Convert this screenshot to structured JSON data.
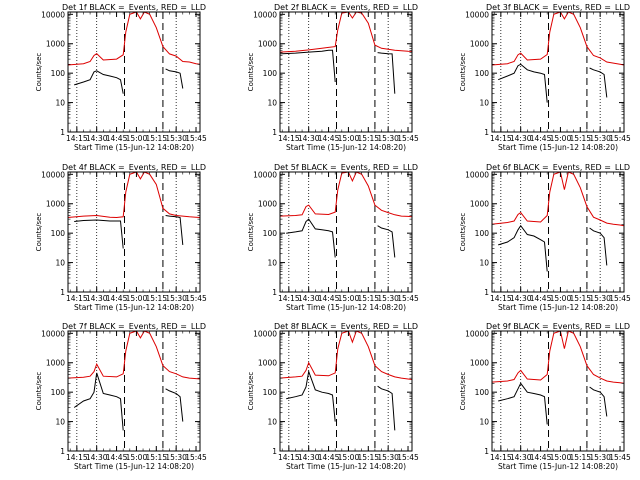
{
  "colors": {
    "events": "#000000",
    "lld": "#dd0000",
    "axes": "#000000"
  },
  "common": {
    "title_suffix": "BLACK =_Events, RED =_LLD",
    "ylabel": "Counts/sec",
    "xlabel": "Start Time (15-Jun-12 14:08:20)",
    "x_ticks": [
      "14:15",
      "14:30",
      "14:45",
      "15:00",
      "15:15",
      "15:30",
      "15:45"
    ],
    "y_ticks": [
      "1",
      "10",
      "100",
      "1000",
      "10000"
    ]
  },
  "chart_data": [
    {
      "type": "line",
      "title": "Det 1f BLACK =_Events, RED =_LLD",
      "xlabel": "Start Time (15-Jun-12 14:08:20)",
      "ylabel": "Counts/sec",
      "xlim": [
        "14:08:20",
        "15:48"
      ],
      "ylim": [
        1,
        12000
      ],
      "yscale": "log",
      "dotted_times": [
        "14:15",
        "14:30",
        "15:30"
      ],
      "dashed_times": [
        "14:51",
        "15:20"
      ],
      "series": [
        {
          "name": "Events",
          "x": [
            "14:13",
            "14:20",
            "14:25",
            "14:28",
            "14:30",
            "14:35",
            "14:40",
            "14:45",
            "14:48",
            "14:50",
            "15:20",
            "15:22",
            "15:25",
            "15:30",
            "15:33",
            "15:35"
          ],
          "y": [
            40,
            50,
            60,
            110,
            120,
            90,
            80,
            70,
            60,
            20,
            null,
            140,
            120,
            110,
            100,
            30
          ]
        },
        {
          "name": "LLD",
          "x": [
            "14:08",
            "14:20",
            "14:25",
            "14:28",
            "14:30",
            "14:35",
            "14:45",
            "14:50",
            "14:52",
            "14:55",
            "15:00",
            "15:03",
            "15:06",
            "15:10",
            "15:15",
            "15:20",
            "15:25",
            "15:30",
            "15:35",
            "15:40",
            "15:45",
            "15:48"
          ],
          "y": [
            190,
            210,
            250,
            400,
            460,
            280,
            300,
            420,
            2500,
            10000,
            12000,
            7000,
            12000,
            10000,
            3500,
            800,
            450,
            380,
            250,
            240,
            210,
            200
          ]
        }
      ]
    },
    {
      "type": "line",
      "title": "Det 2f BLACK =_Events, RED =_LLD",
      "xlabel": "Start Time (15-Jun-12 14:08:20)",
      "ylabel": "Counts/sec",
      "xlim": [
        "14:08:20",
        "15:48"
      ],
      "ylim": [
        1,
        12000
      ],
      "yscale": "log",
      "dotted_times": [
        "14:15",
        "14:30",
        "15:30"
      ],
      "dashed_times": [
        "14:51",
        "15:20"
      ],
      "series": [
        {
          "name": "Events",
          "x": [
            "14:08",
            "14:20",
            "14:30",
            "14:40",
            "14:45",
            "14:48",
            "14:50",
            "15:20",
            "15:22",
            "15:25",
            "15:30",
            "15:33",
            "15:35"
          ],
          "y": [
            450,
            480,
            520,
            560,
            600,
            600,
            50,
            null,
            500,
            480,
            460,
            450,
            20
          ]
        },
        {
          "name": "LLD",
          "x": [
            "14:08",
            "14:20",
            "14:30",
            "14:40",
            "14:45",
            "14:50",
            "14:52",
            "14:55",
            "15:00",
            "15:03",
            "15:06",
            "15:10",
            "15:15",
            "15:20",
            "15:25",
            "15:30",
            "15:35",
            "15:40",
            "15:45",
            "15:48"
          ],
          "y": [
            520,
            560,
            620,
            700,
            750,
            800,
            3000,
            11000,
            12000,
            7500,
            12000,
            11000,
            5000,
            900,
            700,
            650,
            600,
            580,
            560,
            550
          ]
        }
      ]
    },
    {
      "type": "line",
      "title": "Det 3f BLACK =_Events, RED =_LLD",
      "xlabel": "Start Time (15-Jun-12 14:08:20)",
      "ylabel": "Counts/sec",
      "xlim": [
        "14:08:20",
        "15:48"
      ],
      "ylim": [
        1,
        12000
      ],
      "yscale": "log",
      "dotted_times": [
        "14:15",
        "14:30",
        "15:30"
      ],
      "dashed_times": [
        "14:51",
        "15:20"
      ],
      "series": [
        {
          "name": "Events",
          "x": [
            "14:13",
            "14:20",
            "14:25",
            "14:28",
            "14:30",
            "14:35",
            "14:40",
            "14:45",
            "14:48",
            "14:50",
            "15:20",
            "15:22",
            "15:25",
            "15:30",
            "15:33",
            "15:35"
          ],
          "y": [
            60,
            80,
            100,
            180,
            200,
            130,
            110,
            100,
            90,
            10,
            null,
            150,
            130,
            110,
            90,
            15
          ]
        },
        {
          "name": "LLD",
          "x": [
            "14:08",
            "14:20",
            "14:25",
            "14:28",
            "14:30",
            "14:35",
            "14:45",
            "14:50",
            "14:52",
            "14:55",
            "15:00",
            "15:03",
            "15:06",
            "15:10",
            "15:15",
            "15:20",
            "15:25",
            "15:30",
            "15:35",
            "15:40",
            "15:45",
            "15:48"
          ],
          "y": [
            190,
            210,
            250,
            420,
            480,
            280,
            300,
            430,
            2500,
            10000,
            12000,
            7000,
            12000,
            10000,
            3500,
            800,
            400,
            330,
            240,
            220,
            200,
            190
          ]
        }
      ]
    },
    {
      "type": "line",
      "title": "Det 4f BLACK =_Events, RED =_LLD",
      "xlabel": "Start Time (15-Jun-12 14:08:20)",
      "ylabel": "Counts/sec",
      "xlim": [
        "14:08:20",
        "15:48"
      ],
      "ylim": [
        1,
        12000
      ],
      "yscale": "log",
      "dotted_times": [
        "14:15",
        "14:30",
        "15:30"
      ],
      "dashed_times": [
        "14:51",
        "15:20"
      ],
      "series": [
        {
          "name": "Events",
          "x": [
            "14:13",
            "14:20",
            "14:30",
            "14:40",
            "14:45",
            "14:48",
            "14:50",
            "15:20",
            "15:22",
            "15:25",
            "15:30",
            "15:33",
            "15:35"
          ],
          "y": [
            250,
            270,
            280,
            260,
            260,
            260,
            30,
            null,
            400,
            380,
            360,
            340,
            40
          ]
        },
        {
          "name": "LLD",
          "x": [
            "14:08",
            "14:20",
            "14:30",
            "14:40",
            "14:45",
            "14:50",
            "14:52",
            "14:55",
            "15:00",
            "15:03",
            "15:06",
            "15:10",
            "15:15",
            "15:20",
            "15:25",
            "15:30",
            "15:35",
            "15:40",
            "15:45",
            "15:48"
          ],
          "y": [
            340,
            380,
            400,
            350,
            340,
            360,
            2500,
            10000,
            12000,
            7000,
            12000,
            10000,
            4500,
            700,
            450,
            400,
            380,
            360,
            350,
            340
          ]
        }
      ]
    },
    {
      "type": "line",
      "title": "Det 5f BLACK =_Events, RED =_LLD",
      "xlabel": "Start Time (15-Jun-12 14:08:20)",
      "ylabel": "Counts/sec",
      "xlim": [
        "14:08:20",
        "15:48"
      ],
      "ylim": [
        1,
        12000
      ],
      "yscale": "log",
      "dotted_times": [
        "14:15",
        "14:30",
        "15:30"
      ],
      "dashed_times": [
        "14:51",
        "15:20"
      ],
      "series": [
        {
          "name": "Events",
          "x": [
            "14:13",
            "14:20",
            "14:25",
            "14:28",
            "14:30",
            "14:35",
            "14:40",
            "14:45",
            "14:48",
            "14:50",
            "15:20",
            "15:22",
            "15:25",
            "15:30",
            "15:33",
            "15:35"
          ],
          "y": [
            100,
            110,
            120,
            250,
            300,
            140,
            130,
            120,
            110,
            15,
            null,
            180,
            150,
            130,
            110,
            15
          ]
        },
        {
          "name": "LLD",
          "x": [
            "14:08",
            "14:20",
            "14:25",
            "14:28",
            "14:30",
            "14:35",
            "14:45",
            "14:50",
            "14:52",
            "14:55",
            "15:00",
            "15:03",
            "15:06",
            "15:10",
            "15:15",
            "15:20",
            "15:25",
            "15:30",
            "15:35",
            "15:40",
            "15:45",
            "15:48"
          ],
          "y": [
            380,
            400,
            420,
            800,
            900,
            450,
            430,
            520,
            3000,
            11000,
            12000,
            6000,
            12000,
            10000,
            4000,
            900,
            600,
            500,
            420,
            380,
            370,
            360
          ]
        }
      ]
    },
    {
      "type": "line",
      "title": "Det 6f BLACK =_Events, RED =_LLD",
      "xlabel": "Start Time (15-Jun-12 14:08:20)",
      "ylabel": "Counts/sec",
      "xlim": [
        "14:08:20",
        "15:48"
      ],
      "ylim": [
        1,
        12000
      ],
      "yscale": "log",
      "dotted_times": [
        "14:15",
        "14:30",
        "15:30"
      ],
      "dashed_times": [
        "14:51",
        "15:20"
      ],
      "series": [
        {
          "name": "Events",
          "x": [
            "14:13",
            "14:20",
            "14:25",
            "14:28",
            "14:30",
            "14:35",
            "14:40",
            "14:45",
            "14:48",
            "14:50",
            "15:20",
            "15:22",
            "15:25",
            "15:30",
            "15:33",
            "15:35"
          ],
          "y": [
            40,
            50,
            70,
            130,
            180,
            90,
            80,
            60,
            50,
            5,
            null,
            150,
            120,
            100,
            70,
            8
          ]
        },
        {
          "name": "LLD",
          "x": [
            "14:08",
            "14:20",
            "14:25",
            "14:28",
            "14:30",
            "14:35",
            "14:45",
            "14:50",
            "14:52",
            "14:55",
            "15:00",
            "15:03",
            "15:06",
            "15:10",
            "15:15",
            "15:20",
            "15:25",
            "15:30",
            "15:35",
            "15:40",
            "15:45",
            "15:48"
          ],
          "y": [
            200,
            230,
            260,
            430,
            500,
            260,
            240,
            400,
            2500,
            10000,
            12000,
            3000,
            12000,
            10000,
            3500,
            800,
            350,
            280,
            220,
            200,
            190,
            180
          ]
        }
      ]
    },
    {
      "type": "line",
      "title": "Det 7f BLACK =_Events, RED =_LLD",
      "xlabel": "Start Time (15-Jun-12 14:08:20)",
      "ylabel": "Counts/sec",
      "xlim": [
        "14:08:20",
        "15:48"
      ],
      "ylim": [
        1,
        12000
      ],
      "yscale": "log",
      "dotted_times": [
        "14:15",
        "14:30",
        "15:30"
      ],
      "dashed_times": [
        "14:51",
        "15:20"
      ],
      "series": [
        {
          "name": "Events",
          "x": [
            "14:13",
            "14:20",
            "14:25",
            "14:28",
            "14:30",
            "14:35",
            "14:40",
            "14:45",
            "14:48",
            "14:50",
            "15:20",
            "15:22",
            "15:25",
            "15:30",
            "15:33",
            "15:35"
          ],
          "y": [
            30,
            50,
            60,
            100,
            450,
            90,
            80,
            70,
            60,
            5,
            null,
            130,
            110,
            90,
            70,
            10
          ]
        },
        {
          "name": "LLD",
          "x": [
            "14:08",
            "14:20",
            "14:25",
            "14:28",
            "14:30",
            "14:35",
            "14:45",
            "14:50",
            "14:52",
            "14:55",
            "15:00",
            "15:03",
            "15:06",
            "15:10",
            "15:15",
            "15:20",
            "15:25",
            "15:30",
            "15:35",
            "15:40",
            "15:45",
            "15:48"
          ],
          "y": [
            300,
            320,
            350,
            500,
            900,
            350,
            330,
            420,
            2500,
            10000,
            12000,
            7000,
            12000,
            10000,
            3500,
            800,
            500,
            420,
            330,
            300,
            290,
            280
          ]
        }
      ]
    },
    {
      "type": "line",
      "title": "Det 8f BLACK =_Events, RED =_LLD",
      "xlabel": "Start Time (15-Jun-12 14:08:20)",
      "ylabel": "Counts/sec",
      "xlim": [
        "14:08:20",
        "15:48"
      ],
      "ylim": [
        1,
        12000
      ],
      "yscale": "log",
      "dotted_times": [
        "14:15",
        "14:30",
        "15:30"
      ],
      "dashed_times": [
        "14:51",
        "15:20"
      ],
      "series": [
        {
          "name": "Events",
          "x": [
            "14:13",
            "14:20",
            "14:25",
            "14:28",
            "14:30",
            "14:35",
            "14:40",
            "14:45",
            "14:48",
            "14:50",
            "15:20",
            "15:22",
            "15:25",
            "15:30",
            "15:33",
            "15:35"
          ],
          "y": [
            60,
            70,
            80,
            150,
            500,
            120,
            100,
            90,
            80,
            10,
            null,
            160,
            130,
            110,
            90,
            5
          ]
        },
        {
          "name": "LLD",
          "x": [
            "14:08",
            "14:20",
            "14:25",
            "14:28",
            "14:30",
            "14:35",
            "14:45",
            "14:50",
            "14:52",
            "14:55",
            "15:00",
            "15:03",
            "15:06",
            "15:10",
            "15:15",
            "15:20",
            "15:25",
            "15:30",
            "15:35",
            "15:40",
            "15:45",
            "15:48"
          ],
          "y": [
            300,
            330,
            350,
            550,
            1000,
            380,
            360,
            450,
            3000,
            10000,
            12000,
            5000,
            12000,
            10000,
            3500,
            800,
            500,
            400,
            330,
            300,
            280,
            270
          ]
        }
      ]
    },
    {
      "type": "line",
      "title": "Det 9f BLACK =_Events, RED =_LLD",
      "xlabel": "Start Time (15-Jun-12 14:08:20)",
      "ylabel": "Counts/sec",
      "xlim": [
        "14:08:20",
        "15:48"
      ],
      "ylim": [
        1,
        12000
      ],
      "yscale": "log",
      "dotted_times": [
        "14:15",
        "14:30",
        "15:30"
      ],
      "dashed_times": [
        "14:51",
        "15:20"
      ],
      "series": [
        {
          "name": "Events",
          "x": [
            "14:13",
            "14:20",
            "14:25",
            "14:28",
            "14:30",
            "14:35",
            "14:40",
            "14:45",
            "14:48",
            "14:50",
            "15:20",
            "15:22",
            "15:25",
            "15:30",
            "15:33",
            "15:35"
          ],
          "y": [
            50,
            60,
            70,
            130,
            200,
            100,
            90,
            80,
            70,
            8,
            null,
            150,
            120,
            100,
            70,
            15
          ]
        },
        {
          "name": "LLD",
          "x": [
            "14:08",
            "14:20",
            "14:25",
            "14:28",
            "14:30",
            "14:35",
            "14:45",
            "14:50",
            "14:52",
            "14:55",
            "15:00",
            "15:03",
            "15:06",
            "15:10",
            "15:15",
            "15:20",
            "15:25",
            "15:30",
            "15:35",
            "15:40",
            "15:45",
            "15:48"
          ],
          "y": [
            220,
            240,
            270,
            450,
            550,
            280,
            260,
            400,
            2500,
            10000,
            12000,
            3000,
            12000,
            10000,
            3500,
            800,
            400,
            300,
            240,
            220,
            210,
            200
          ]
        }
      ]
    }
  ]
}
